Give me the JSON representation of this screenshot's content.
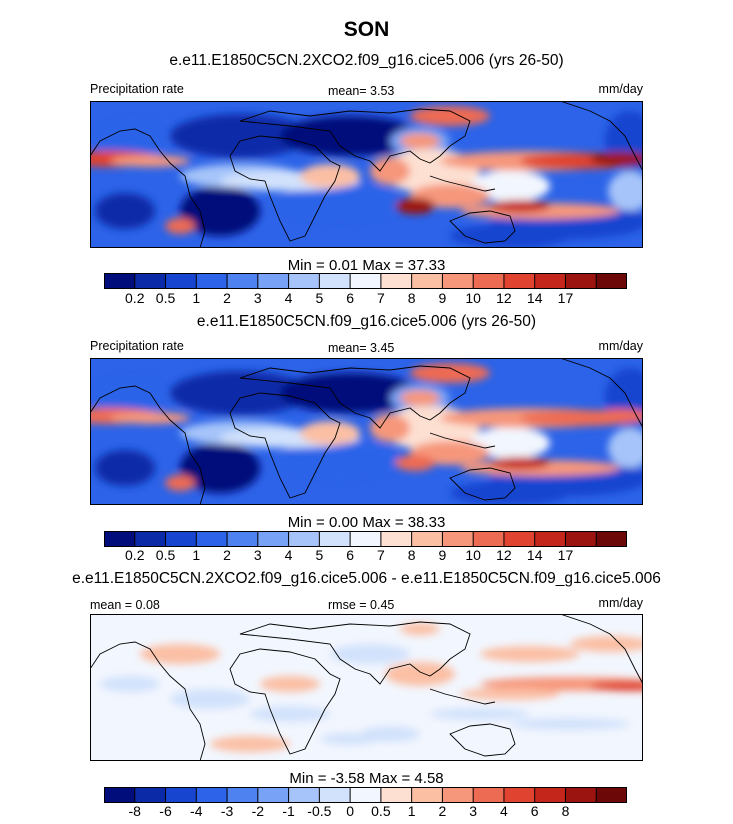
{
  "season_title": "SON",
  "colors": {
    "full_field": [
      "#000d7a",
      "#0a2aa8",
      "#1845d0",
      "#2c63e8",
      "#4d82f0",
      "#77a2f5",
      "#a6c4f9",
      "#d2e2fc",
      "#f2f6fe",
      "#fde0d2",
      "#fbbfa4",
      "#f6977c",
      "#ee6b53",
      "#e0432f",
      "#c4261b",
      "#9c1410",
      "#6d0808"
    ],
    "difference": [
      "#000d7a",
      "#0a2aa8",
      "#1845d0",
      "#2c63e8",
      "#4d82f0",
      "#77a2f5",
      "#a6c4f9",
      "#d2e2fc",
      "#f2f6fe",
      "#fde0d2",
      "#fbbfa4",
      "#f6977c",
      "#ee6b53",
      "#e0432f",
      "#c4261b",
      "#9c1410",
      "#6d0808"
    ]
  },
  "panels": [
    {
      "case_title": "e.e11.E1850C5CN.2XCO2.f09_g16.cice5.006 (yrs 26-50)",
      "left_label": "Precipitation rate",
      "center_label": "mean=   3.53",
      "right_label": "mm/day",
      "min_max": "Min =   0.01 Max =  37.33",
      "colorbar_ticks": [
        "0.2",
        "0.5",
        "1",
        "2",
        "3",
        "4",
        "5",
        "6",
        "7",
        "8",
        "9",
        "10",
        "12",
        "14",
        "17"
      ]
    },
    {
      "case_title": "e.e11.E1850C5CN.f09_g16.cice5.006 (yrs 26-50)",
      "left_label": "Precipitation rate",
      "center_label": "mean=   3.45",
      "right_label": "mm/day",
      "min_max": "Min =   0.00 Max =  38.33",
      "colorbar_ticks": [
        "0.2",
        "0.5",
        "1",
        "2",
        "3",
        "4",
        "5",
        "6",
        "7",
        "8",
        "9",
        "10",
        "12",
        "14",
        "17"
      ]
    },
    {
      "case_title": "e.e11.E1850C5CN.2XCO2.f09_g16.cice5.006 - e.e11.E1850C5CN.f09_g16.cice5.006",
      "left_label": "mean =   0.08",
      "center_label": "rmse =   0.45",
      "right_label": "mm/day",
      "min_max": "Min =  -3.58 Max =   4.58",
      "colorbar_ticks": [
        "-8",
        "-6",
        "-4",
        "-3",
        "-2",
        "-1",
        "-0.5",
        "0",
        "0.5",
        "1",
        "2",
        "3",
        "4",
        "6",
        "8"
      ]
    }
  ],
  "chart_data": [
    {
      "type": "heatmap",
      "title": "SON",
      "subtitle": "e.e11.E1850C5CN.2XCO2.f09_g16.cice5.006 (yrs 26-50)",
      "variable": "Precipitation rate",
      "units": "mm/day",
      "mean": 3.53,
      "min": 0.01,
      "max": 37.33,
      "contour_levels": [
        0.2,
        0.5,
        1,
        2,
        3,
        4,
        5,
        6,
        7,
        8,
        9,
        10,
        12,
        14,
        17
      ]
    },
    {
      "type": "heatmap",
      "subtitle": "e.e11.E1850C5CN.f09_g16.cice5.006 (yrs 26-50)",
      "variable": "Precipitation rate",
      "units": "mm/day",
      "mean": 3.45,
      "min": 0.0,
      "max": 38.33,
      "contour_levels": [
        0.2,
        0.5,
        1,
        2,
        3,
        4,
        5,
        6,
        7,
        8,
        9,
        10,
        12,
        14,
        17
      ]
    },
    {
      "type": "heatmap",
      "subtitle": "e.e11.E1850C5CN.2XCO2.f09_g16.cice5.006 - e.e11.E1850C5CN.f09_g16.cice5.006",
      "units": "mm/day",
      "mean": 0.08,
      "rmse": 0.45,
      "min": -3.58,
      "max": 4.58,
      "contour_levels": [
        -8,
        -6,
        -4,
        -3,
        -2,
        -1,
        -0.5,
        0,
        0.5,
        1,
        2,
        3,
        4,
        6,
        8
      ]
    }
  ]
}
